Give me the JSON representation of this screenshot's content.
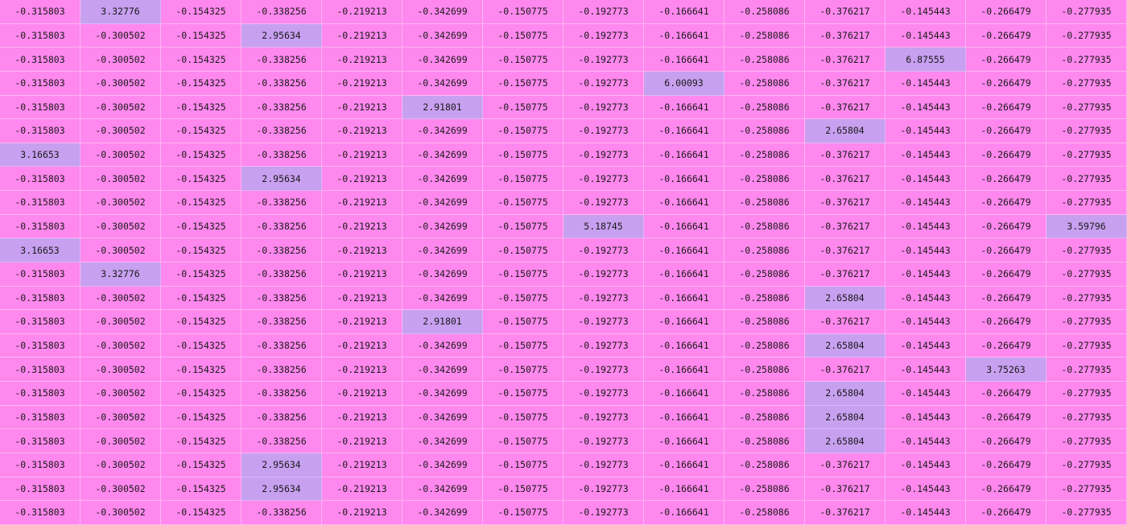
{
  "colors": {
    "background": "#ff88ee",
    "highlight": "#c8a0f0",
    "gridline": "#ffb5f4",
    "text": "#1a1a1a"
  },
  "table": {
    "columns": 14,
    "rows": [
      [
        "-0.315803",
        "3.32776",
        "-0.154325",
        "-0.338256",
        "-0.219213",
        "-0.342699",
        "-0.150775",
        "-0.192773",
        "-0.166641",
        "-0.258086",
        "-0.376217",
        "-0.145443",
        "-0.266479",
        "-0.277935"
      ],
      [
        "-0.315803",
        "-0.300502",
        "-0.154325",
        "2.95634",
        "-0.219213",
        "-0.342699",
        "-0.150775",
        "-0.192773",
        "-0.166641",
        "-0.258086",
        "-0.376217",
        "-0.145443",
        "-0.266479",
        "-0.277935"
      ],
      [
        "-0.315803",
        "-0.300502",
        "-0.154325",
        "-0.338256",
        "-0.219213",
        "-0.342699",
        "-0.150775",
        "-0.192773",
        "-0.166641",
        "-0.258086",
        "-0.376217",
        "6.87555",
        "-0.266479",
        "-0.277935"
      ],
      [
        "-0.315803",
        "-0.300502",
        "-0.154325",
        "-0.338256",
        "-0.219213",
        "-0.342699",
        "-0.150775",
        "-0.192773",
        "6.00093",
        "-0.258086",
        "-0.376217",
        "-0.145443",
        "-0.266479",
        "-0.277935"
      ],
      [
        "-0.315803",
        "-0.300502",
        "-0.154325",
        "-0.338256",
        "-0.219213",
        "2.91801",
        "-0.150775",
        "-0.192773",
        "-0.166641",
        "-0.258086",
        "-0.376217",
        "-0.145443",
        "-0.266479",
        "-0.277935"
      ],
      [
        "-0.315803",
        "-0.300502",
        "-0.154325",
        "-0.338256",
        "-0.219213",
        "-0.342699",
        "-0.150775",
        "-0.192773",
        "-0.166641",
        "-0.258086",
        "2.65804",
        "-0.145443",
        "-0.266479",
        "-0.277935"
      ],
      [
        "3.16653",
        "-0.300502",
        "-0.154325",
        "-0.338256",
        "-0.219213",
        "-0.342699",
        "-0.150775",
        "-0.192773",
        "-0.166641",
        "-0.258086",
        "-0.376217",
        "-0.145443",
        "-0.266479",
        "-0.277935"
      ],
      [
        "-0.315803",
        "-0.300502",
        "-0.154325",
        "2.95634",
        "-0.219213",
        "-0.342699",
        "-0.150775",
        "-0.192773",
        "-0.166641",
        "-0.258086",
        "-0.376217",
        "-0.145443",
        "-0.266479",
        "-0.277935"
      ],
      [
        "-0.315803",
        "-0.300502",
        "-0.154325",
        "-0.338256",
        "-0.219213",
        "-0.342699",
        "-0.150775",
        "-0.192773",
        "-0.166641",
        "-0.258086",
        "-0.376217",
        "-0.145443",
        "-0.266479",
        "-0.277935"
      ],
      [
        "-0.315803",
        "-0.300502",
        "-0.154325",
        "-0.338256",
        "-0.219213",
        "-0.342699",
        "-0.150775",
        "5.18745",
        "-0.166641",
        "-0.258086",
        "-0.376217",
        "-0.145443",
        "-0.266479",
        "3.59796"
      ],
      [
        "3.16653",
        "-0.300502",
        "-0.154325",
        "-0.338256",
        "-0.219213",
        "-0.342699",
        "-0.150775",
        "-0.192773",
        "-0.166641",
        "-0.258086",
        "-0.376217",
        "-0.145443",
        "-0.266479",
        "-0.277935"
      ],
      [
        "-0.315803",
        "3.32776",
        "-0.154325",
        "-0.338256",
        "-0.219213",
        "-0.342699",
        "-0.150775",
        "-0.192773",
        "-0.166641",
        "-0.258086",
        "-0.376217",
        "-0.145443",
        "-0.266479",
        "-0.277935"
      ],
      [
        "-0.315803",
        "-0.300502",
        "-0.154325",
        "-0.338256",
        "-0.219213",
        "-0.342699",
        "-0.150775",
        "-0.192773",
        "-0.166641",
        "-0.258086",
        "2.65804",
        "-0.145443",
        "-0.266479",
        "-0.277935"
      ],
      [
        "-0.315803",
        "-0.300502",
        "-0.154325",
        "-0.338256",
        "-0.219213",
        "2.91801",
        "-0.150775",
        "-0.192773",
        "-0.166641",
        "-0.258086",
        "-0.376217",
        "-0.145443",
        "-0.266479",
        "-0.277935"
      ],
      [
        "-0.315803",
        "-0.300502",
        "-0.154325",
        "-0.338256",
        "-0.219213",
        "-0.342699",
        "-0.150775",
        "-0.192773",
        "-0.166641",
        "-0.258086",
        "2.65804",
        "-0.145443",
        "-0.266479",
        "-0.277935"
      ],
      [
        "-0.315803",
        "-0.300502",
        "-0.154325",
        "-0.338256",
        "-0.219213",
        "-0.342699",
        "-0.150775",
        "-0.192773",
        "-0.166641",
        "-0.258086",
        "-0.376217",
        "-0.145443",
        "3.75263",
        "-0.277935"
      ],
      [
        "-0.315803",
        "-0.300502",
        "-0.154325",
        "-0.338256",
        "-0.219213",
        "-0.342699",
        "-0.150775",
        "-0.192773",
        "-0.166641",
        "-0.258086",
        "2.65804",
        "-0.145443",
        "-0.266479",
        "-0.277935"
      ],
      [
        "-0.315803",
        "-0.300502",
        "-0.154325",
        "-0.338256",
        "-0.219213",
        "-0.342699",
        "-0.150775",
        "-0.192773",
        "-0.166641",
        "-0.258086",
        "2.65804",
        "-0.145443",
        "-0.266479",
        "-0.277935"
      ],
      [
        "-0.315803",
        "-0.300502",
        "-0.154325",
        "-0.338256",
        "-0.219213",
        "-0.342699",
        "-0.150775",
        "-0.192773",
        "-0.166641",
        "-0.258086",
        "2.65804",
        "-0.145443",
        "-0.266479",
        "-0.277935"
      ],
      [
        "-0.315803",
        "-0.300502",
        "-0.154325",
        "2.95634",
        "-0.219213",
        "-0.342699",
        "-0.150775",
        "-0.192773",
        "-0.166641",
        "-0.258086",
        "-0.376217",
        "-0.145443",
        "-0.266479",
        "-0.277935"
      ],
      [
        "-0.315803",
        "-0.300502",
        "-0.154325",
        "2.95634",
        "-0.219213",
        "-0.342699",
        "-0.150775",
        "-0.192773",
        "-0.166641",
        "-0.258086",
        "-0.376217",
        "-0.145443",
        "-0.266479",
        "-0.277935"
      ],
      [
        "-0.315803",
        "-0.300502",
        "-0.154325",
        "-0.338256",
        "-0.219213",
        "-0.342699",
        "-0.150775",
        "-0.192773",
        "-0.166641",
        "-0.258086",
        "-0.376217",
        "-0.145443",
        "-0.266479",
        "-0.277935"
      ]
    ]
  }
}
